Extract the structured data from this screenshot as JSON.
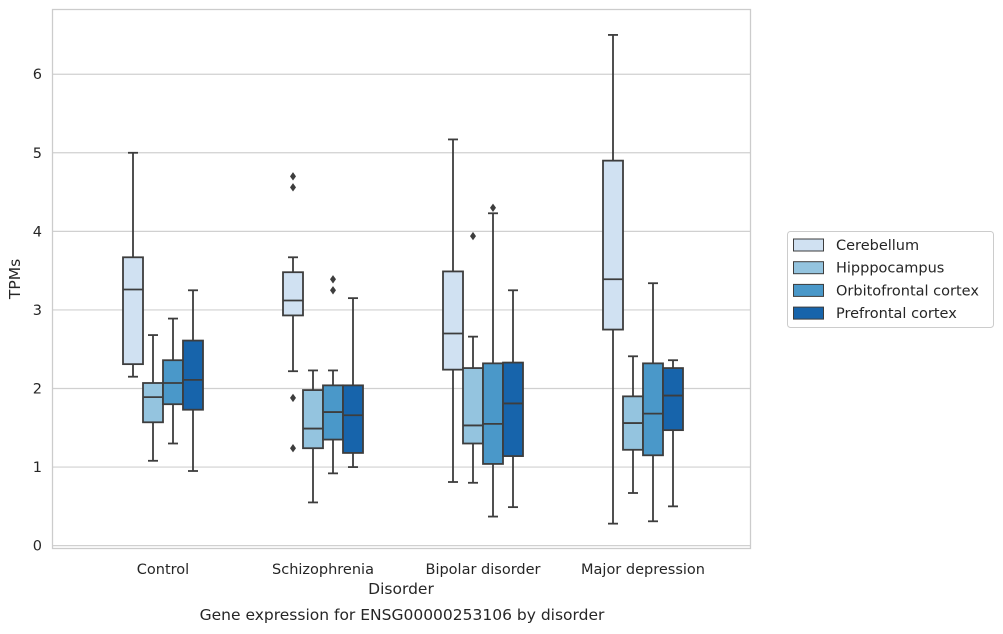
{
  "caption": "Gene expression for ENSG00000253106 by disorder",
  "chart_data": {
    "type": "box",
    "xlabel": "Disorder",
    "ylabel": "TPMs",
    "categories": [
      "Control",
      "Schizophrenia",
      "Bipolar disorder",
      "Major depression"
    ],
    "ylim": [
      -0.03,
      6.83
    ],
    "yticks": [
      0,
      1,
      2,
      3,
      4,
      5,
      6
    ],
    "grid": true,
    "legend_position": "right",
    "series": [
      {
        "name": "Cerebellum",
        "color": "#d0e1f2",
        "boxes": [
          {
            "whislo": 2.15,
            "q1": 2.31,
            "med": 3.26,
            "q3": 3.67,
            "whishi": 5.0,
            "fliers": []
          },
          {
            "whislo": 2.22,
            "q1": 2.93,
            "med": 3.12,
            "q3": 3.48,
            "whishi": 3.67,
            "fliers": [
              1.24,
              1.88,
              4.56,
              4.7
            ]
          },
          {
            "whislo": 0.81,
            "q1": 2.24,
            "med": 2.7,
            "q3": 3.49,
            "whishi": 5.17,
            "fliers": []
          },
          {
            "whislo": 0.28,
            "q1": 2.75,
            "med": 3.39,
            "q3": 4.9,
            "whishi": 6.5,
            "fliers": []
          }
        ]
      },
      {
        "name": "Hipppocampus",
        "color": "#94c4df",
        "boxes": [
          {
            "whislo": 1.08,
            "q1": 1.57,
            "med": 1.89,
            "q3": 2.07,
            "whishi": 2.68,
            "fliers": []
          },
          {
            "whislo": 0.55,
            "q1": 1.24,
            "med": 1.49,
            "q3": 1.98,
            "whishi": 2.23,
            "fliers": []
          },
          {
            "whislo": 0.8,
            "q1": 1.3,
            "med": 1.53,
            "q3": 2.26,
            "whishi": 2.66,
            "fliers": [
              3.94
            ]
          },
          {
            "whislo": 0.67,
            "q1": 1.22,
            "med": 1.56,
            "q3": 1.9,
            "whishi": 2.41,
            "fliers": []
          }
        ]
      },
      {
        "name": "Orbitofrontal cortex",
        "color": "#4a98c9",
        "boxes": [
          {
            "whislo": 1.3,
            "q1": 1.8,
            "med": 2.07,
            "q3": 2.36,
            "whishi": 2.89,
            "fliers": []
          },
          {
            "whislo": 0.92,
            "q1": 1.35,
            "med": 1.7,
            "q3": 2.04,
            "whishi": 2.23,
            "fliers": [
              3.25,
              3.39
            ]
          },
          {
            "whislo": 0.37,
            "q1": 1.04,
            "med": 1.55,
            "q3": 2.32,
            "whishi": 4.23,
            "fliers": [
              4.3
            ]
          },
          {
            "whislo": 0.31,
            "q1": 1.15,
            "med": 1.68,
            "q3": 2.32,
            "whishi": 3.34,
            "fliers": []
          }
        ]
      },
      {
        "name": "Prefrontal cortex",
        "color": "#1764ab",
        "boxes": [
          {
            "whislo": 0.95,
            "q1": 1.73,
            "med": 2.11,
            "q3": 2.61,
            "whishi": 3.25,
            "fliers": []
          },
          {
            "whislo": 1.0,
            "q1": 1.18,
            "med": 1.66,
            "q3": 2.04,
            "whishi": 3.15,
            "fliers": []
          },
          {
            "whislo": 0.49,
            "q1": 1.14,
            "med": 1.81,
            "q3": 2.33,
            "whishi": 3.25,
            "fliers": []
          },
          {
            "whislo": 0.5,
            "q1": 1.47,
            "med": 1.91,
            "q3": 2.26,
            "whishi": 2.36,
            "fliers": []
          }
        ]
      }
    ]
  }
}
